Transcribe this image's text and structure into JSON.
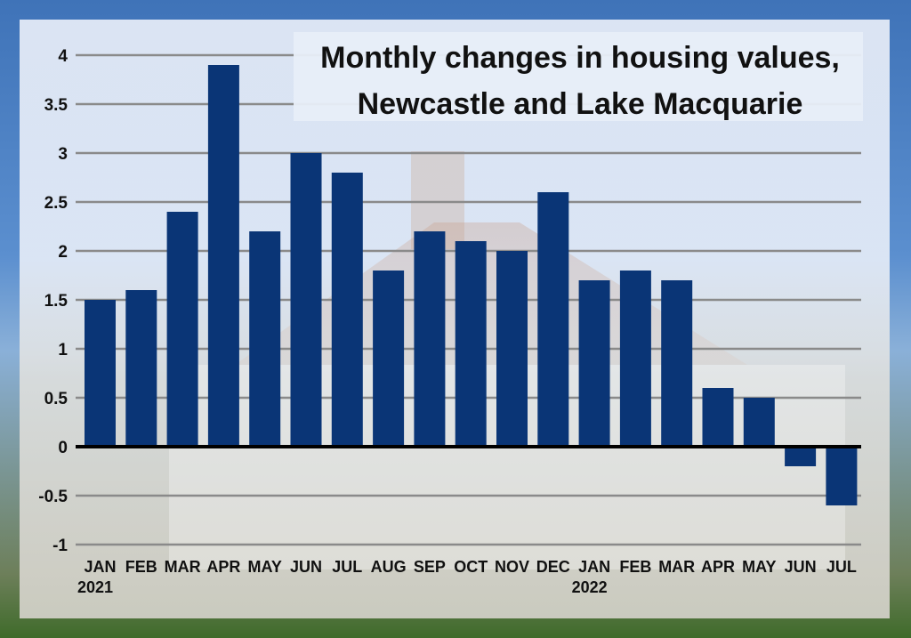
{
  "chart_data": {
    "type": "bar",
    "title": "Monthly changes in housing values,",
    "subtitle": "Newcastle and Lake Macquarie",
    "categories": [
      "JAN",
      "FEB",
      "MAR",
      "APR",
      "MAY",
      "JUN",
      "JUL",
      "AUG",
      "SEP",
      "OCT",
      "NOV",
      "DEC",
      "JAN",
      "FEB",
      "MAR",
      "APR",
      "MAY",
      "JUN",
      "JUL"
    ],
    "year_labels": [
      {
        "index": 0,
        "label": "2021"
      },
      {
        "index": 12,
        "label": "2022"
      }
    ],
    "values": [
      1.5,
      1.6,
      2.4,
      3.9,
      2.2,
      3.0,
      2.8,
      1.8,
      2.2,
      2.1,
      2.0,
      2.6,
      1.7,
      1.8,
      1.7,
      0.6,
      0.5,
      -0.2,
      -0.6
    ],
    "yticks": [
      "4",
      "3.5",
      "3",
      "2.5",
      "2",
      "1.5",
      "1",
      "0.5",
      "0",
      "-0.5",
      "-1"
    ],
    "ylim": [
      -1,
      4
    ],
    "grid": true,
    "bar_color": "#0a3576",
    "xlabel": "",
    "ylabel": ""
  }
}
